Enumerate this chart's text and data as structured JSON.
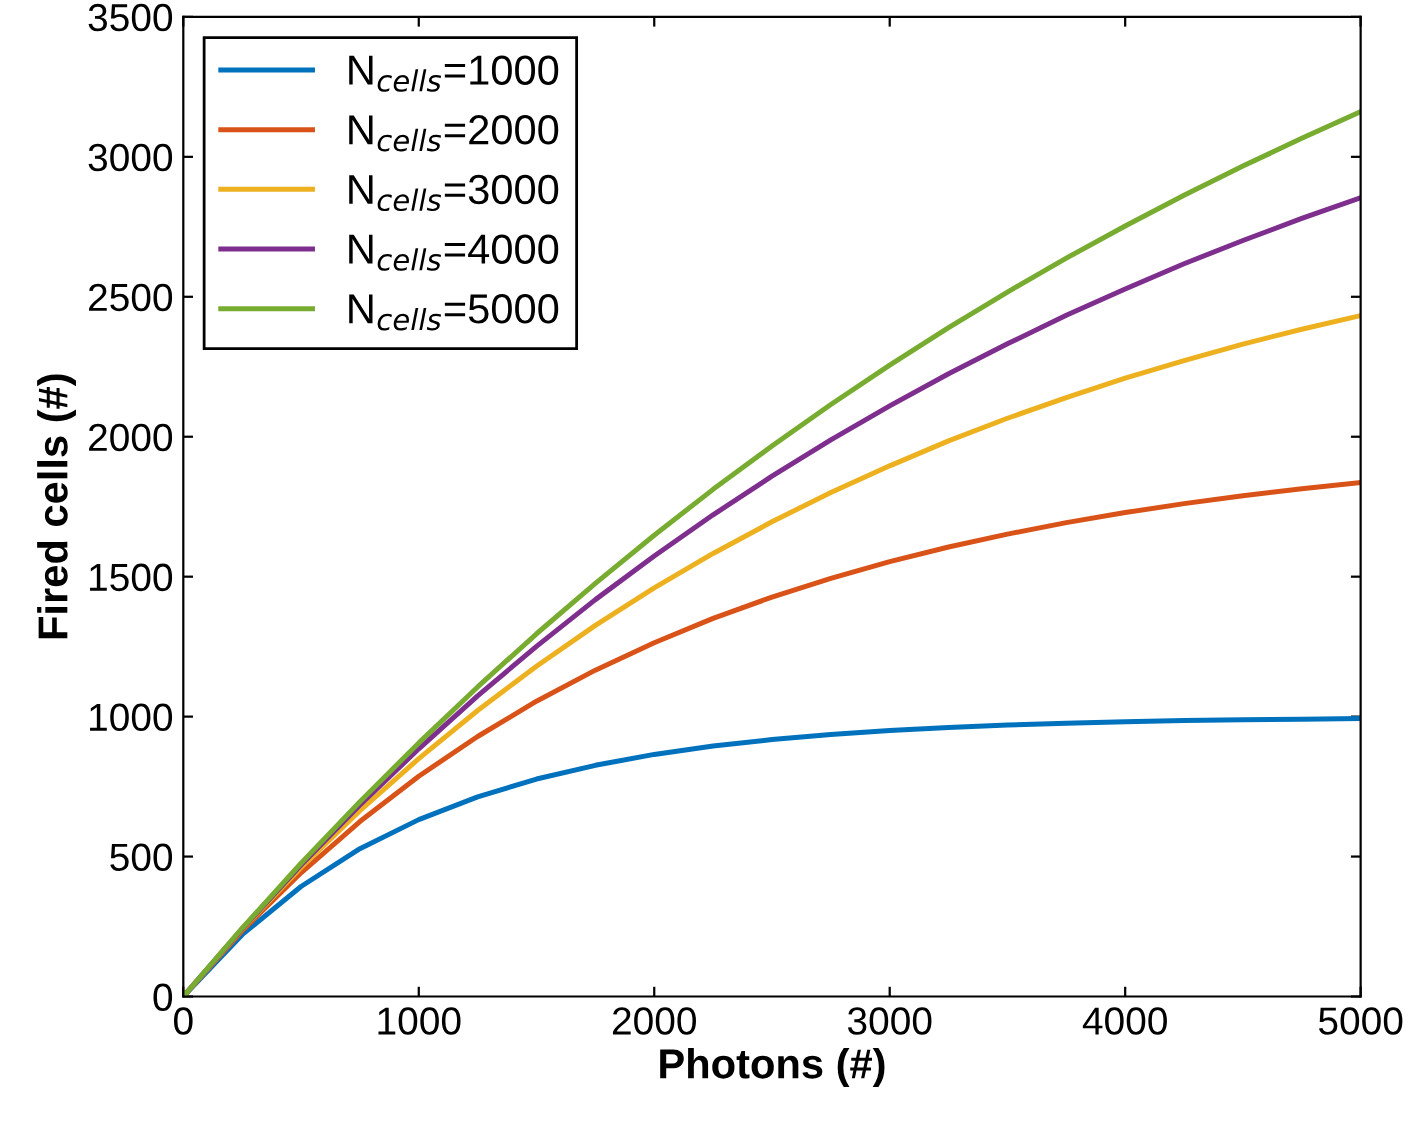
{
  "chart_data": {
    "type": "line",
    "xlabel": "Photons (#)",
    "ylabel": "Fired cells (#)",
    "x": [
      0,
      250,
      500,
      750,
      1000,
      1250,
      1500,
      1750,
      2000,
      2250,
      2500,
      2750,
      3000,
      3250,
      3500,
      3750,
      4000,
      4250,
      4500,
      4750,
      5000
    ],
    "series": [
      {
        "name": "N$_{cells}$=1000",
        "color": "#0072bd",
        "values": [
          0,
          221,
          393,
          528,
          632,
          713,
          777,
          826,
          865,
          895,
          918,
          936,
          950,
          961,
          970,
          976,
          982,
          986,
          989,
          991,
          993
        ]
      },
      {
        "name": "N$_{cells}$=2000",
        "color": "#d95319",
        "values": [
          0,
          235,
          442,
          625,
          787,
          929,
          1055,
          1166,
          1264,
          1351,
          1427,
          1494,
          1554,
          1606,
          1652,
          1693,
          1729,
          1761,
          1789,
          1814,
          1836
        ]
      },
      {
        "name": "N$_{cells}$=3000",
        "color": "#edb120",
        "values": [
          0,
          240,
          461,
          664,
          850,
          1022,
          1180,
          1326,
          1460,
          1583,
          1696,
          1801,
          1896,
          1985,
          2066,
          2140,
          2209,
          2272,
          2331,
          2384,
          2433
        ]
      },
      {
        "name": "N$_{cells}$=4000",
        "color": "#7e2f8e",
        "values": [
          0,
          242,
          470,
          684,
          885,
          1074,
          1251,
          1418,
          1574,
          1721,
          1859,
          1989,
          2110,
          2225,
          2332,
          2434,
          2528,
          2618,
          2701,
          2780,
          2854
        ]
      },
      {
        "name": "N$_{cells}$=5000",
        "color": "#77ac30",
        "values": [
          0,
          244,
          476,
          696,
          906,
          1106,
          1296,
          1476,
          1648,
          1812,
          1967,
          2115,
          2256,
          2390,
          2517,
          2638,
          2753,
          2863,
          2967,
          3066,
          3161
        ]
      }
    ],
    "xlim": [
      0,
      5000
    ],
    "xticks": [
      0,
      1000,
      2000,
      3000,
      4000,
      5000
    ],
    "ylim": [
      0,
      3500
    ],
    "yticks": [
      0,
      500,
      1000,
      1500,
      2000,
      2500,
      3000,
      3500
    ],
    "grid": false,
    "legend": "top left",
    "marker": "none",
    "line_style": "solid"
  }
}
